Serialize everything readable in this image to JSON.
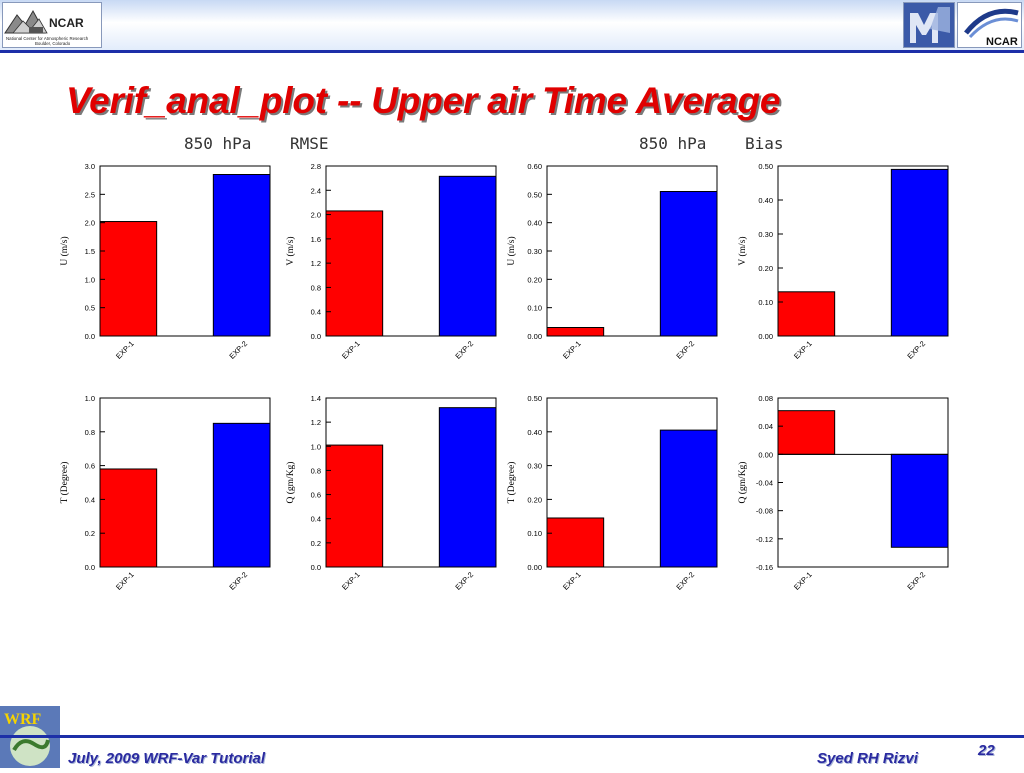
{
  "slide": {
    "title": "Verif_anal_plot   -- Upper air Time Average",
    "label_rmse": "850 hPa    RMSE",
    "label_bias": "850 hPa    Bias",
    "footer_left": "July, 2009 WRF-Var Tutorial",
    "footer_right": "Syed RH Rizvi",
    "page_number": "22",
    "logo_left_text": "NCAR",
    "logo_left_subtext": "National Center for Atmospheric Research",
    "logo_left_subtext2": "Boulder, Colorado",
    "logo_right_text": "NCAR",
    "logo_wrf_text": "WRF",
    "colors": {
      "title": "#e00000",
      "footer_text": "#2a2aa0",
      "rule": "#1c2fa8"
    }
  },
  "chart_data": [
    {
      "type": "bar",
      "categories": [
        "EXP-1",
        "EXP-2"
      ],
      "values": [
        2.02,
        2.85
      ],
      "ylabel": "U (m/s)",
      "ylim": [
        0.0,
        3.0
      ],
      "ticks": [
        "0.0",
        "0.5",
        "1.0",
        "1.5",
        "2.0",
        "2.5",
        "3.0"
      ],
      "colors": [
        "#ff0000",
        "#0000ff"
      ]
    },
    {
      "type": "bar",
      "categories": [
        "EXP-1",
        "EXP-2"
      ],
      "values": [
        2.06,
        2.63
      ],
      "ylabel": "V (m/s)",
      "ylim": [
        0.0,
        2.8
      ],
      "ticks": [
        "0.0",
        "0.4",
        "0.8",
        "1.2",
        "1.6",
        "2.0",
        "2.4",
        "2.8"
      ],
      "colors": [
        "#ff0000",
        "#0000ff"
      ]
    },
    {
      "type": "bar",
      "categories": [
        "EXP-1",
        "EXP-2"
      ],
      "values": [
        0.03,
        0.51
      ],
      "ylabel": "U (m/s)",
      "ylim": [
        0.0,
        0.6
      ],
      "ticks": [
        "0.00",
        "0.10",
        "0.20",
        "0.30",
        "0.40",
        "0.50",
        "0.60"
      ],
      "colors": [
        "#ff0000",
        "#0000ff"
      ]
    },
    {
      "type": "bar",
      "categories": [
        "EXP-1",
        "EXP-2"
      ],
      "values": [
        0.13,
        0.49
      ],
      "ylabel": "V (m/s)",
      "ylim": [
        0.0,
        0.5
      ],
      "ticks": [
        "0.00",
        "0.10",
        "0.20",
        "0.30",
        "0.40",
        "0.50"
      ],
      "colors": [
        "#ff0000",
        "#0000ff"
      ]
    },
    {
      "type": "bar",
      "categories": [
        "EXP-1",
        "EXP-2"
      ],
      "values": [
        0.58,
        0.85
      ],
      "ylabel": "T (Degree)",
      "ylim": [
        0.0,
        1.0
      ],
      "ticks": [
        "0.0",
        "0.2",
        "0.4",
        "0.6",
        "0.8",
        "1.0"
      ],
      "colors": [
        "#ff0000",
        "#0000ff"
      ]
    },
    {
      "type": "bar",
      "categories": [
        "EXP-1",
        "EXP-2"
      ],
      "values": [
        1.01,
        1.32
      ],
      "ylabel": "Q (gm/Kg)",
      "ylim": [
        0.0,
        1.4
      ],
      "ticks": [
        "0.0",
        "0.2",
        "0.4",
        "0.6",
        "0.8",
        "1.0",
        "1.2",
        "1.4"
      ],
      "colors": [
        "#ff0000",
        "#0000ff"
      ]
    },
    {
      "type": "bar",
      "categories": [
        "EXP-1",
        "EXP-2"
      ],
      "values": [
        0.145,
        0.405
      ],
      "ylabel": "T (Degree)",
      "ylim": [
        0.0,
        0.5
      ],
      "ticks": [
        "0.00",
        "0.10",
        "0.20",
        "0.30",
        "0.40",
        "0.50"
      ],
      "colors": [
        "#ff0000",
        "#0000ff"
      ]
    },
    {
      "type": "bar",
      "categories": [
        "EXP-1",
        "EXP-2"
      ],
      "values": [
        0.062,
        -0.132
      ],
      "ylabel": "Q (gm/Kg)",
      "ylim": [
        -0.16,
        0.08
      ],
      "ticks": [
        "-0.16",
        "-0.12",
        "-0.08",
        "-0.04",
        "0.00",
        "0.04",
        "0.08"
      ],
      "colors": [
        "#ff0000",
        "#0000ff"
      ]
    }
  ]
}
